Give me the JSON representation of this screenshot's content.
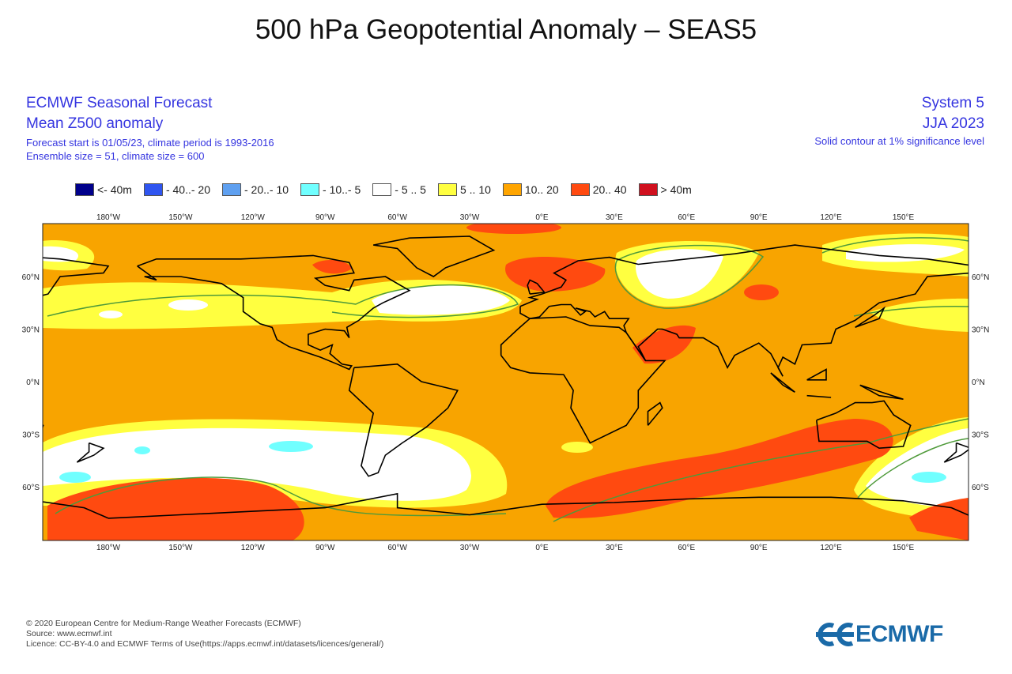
{
  "title": "500 hPa Geopotential Anomaly – SEAS5",
  "header_left": {
    "line1": "ECMWF Seasonal Forecast",
    "line2": "Mean Z500 anomaly",
    "line3": "Forecast start is 01/05/23, climate period is 1993-2016",
    "line4": "Ensemble size = 51, climate size = 600"
  },
  "header_right": {
    "line1": "System 5",
    "line2": "JJA 2023",
    "line3": "Solid contour at 1% significance level"
  },
  "legend": [
    {
      "label": "<- 40m",
      "color": "#00008b"
    },
    {
      "label": "- 40..- 20",
      "color": "#2f55f0"
    },
    {
      "label": "- 20..- 10",
      "color": "#5fa0f0"
    },
    {
      "label": "- 10..- 5",
      "color": "#70ffff"
    },
    {
      "label": "- 5 .. 5",
      "color": "#ffffff"
    },
    {
      "label": "5 .. 10",
      "color": "#ffff40"
    },
    {
      "label": "10.. 20",
      "color": "#ffa500"
    },
    {
      "label": "20.. 40",
      "color": "#ff4a10"
    },
    {
      "label": ">  40m",
      "color": "#d0101e"
    }
  ],
  "map": {
    "lon_ticks": [
      "180°W",
      "150°W",
      "120°W",
      "90°W",
      "60°W",
      "30°W",
      "0°E",
      "30°E",
      "60°E",
      "90°E",
      "120°E",
      "150°E"
    ],
    "lat_ticks": [
      "60°N",
      "30°N",
      "0°N",
      "30°S",
      "60°S"
    ],
    "colors": {
      "background": "#f8a400",
      "contour": "#4f9a3a",
      "coast": "#000000"
    }
  },
  "footer": {
    "line1": "© 2020 European Centre for Medium-Range Weather Forecasts (ECMWF)",
    "line2": "Source: www.ecmwf.int",
    "line3": "Licence: CC-BY-4.0 and ECMWF Terms of Use(https://apps.ecmwf.int/datasets/licences/general/)"
  },
  "logo": {
    "text": "ECMWF"
  }
}
